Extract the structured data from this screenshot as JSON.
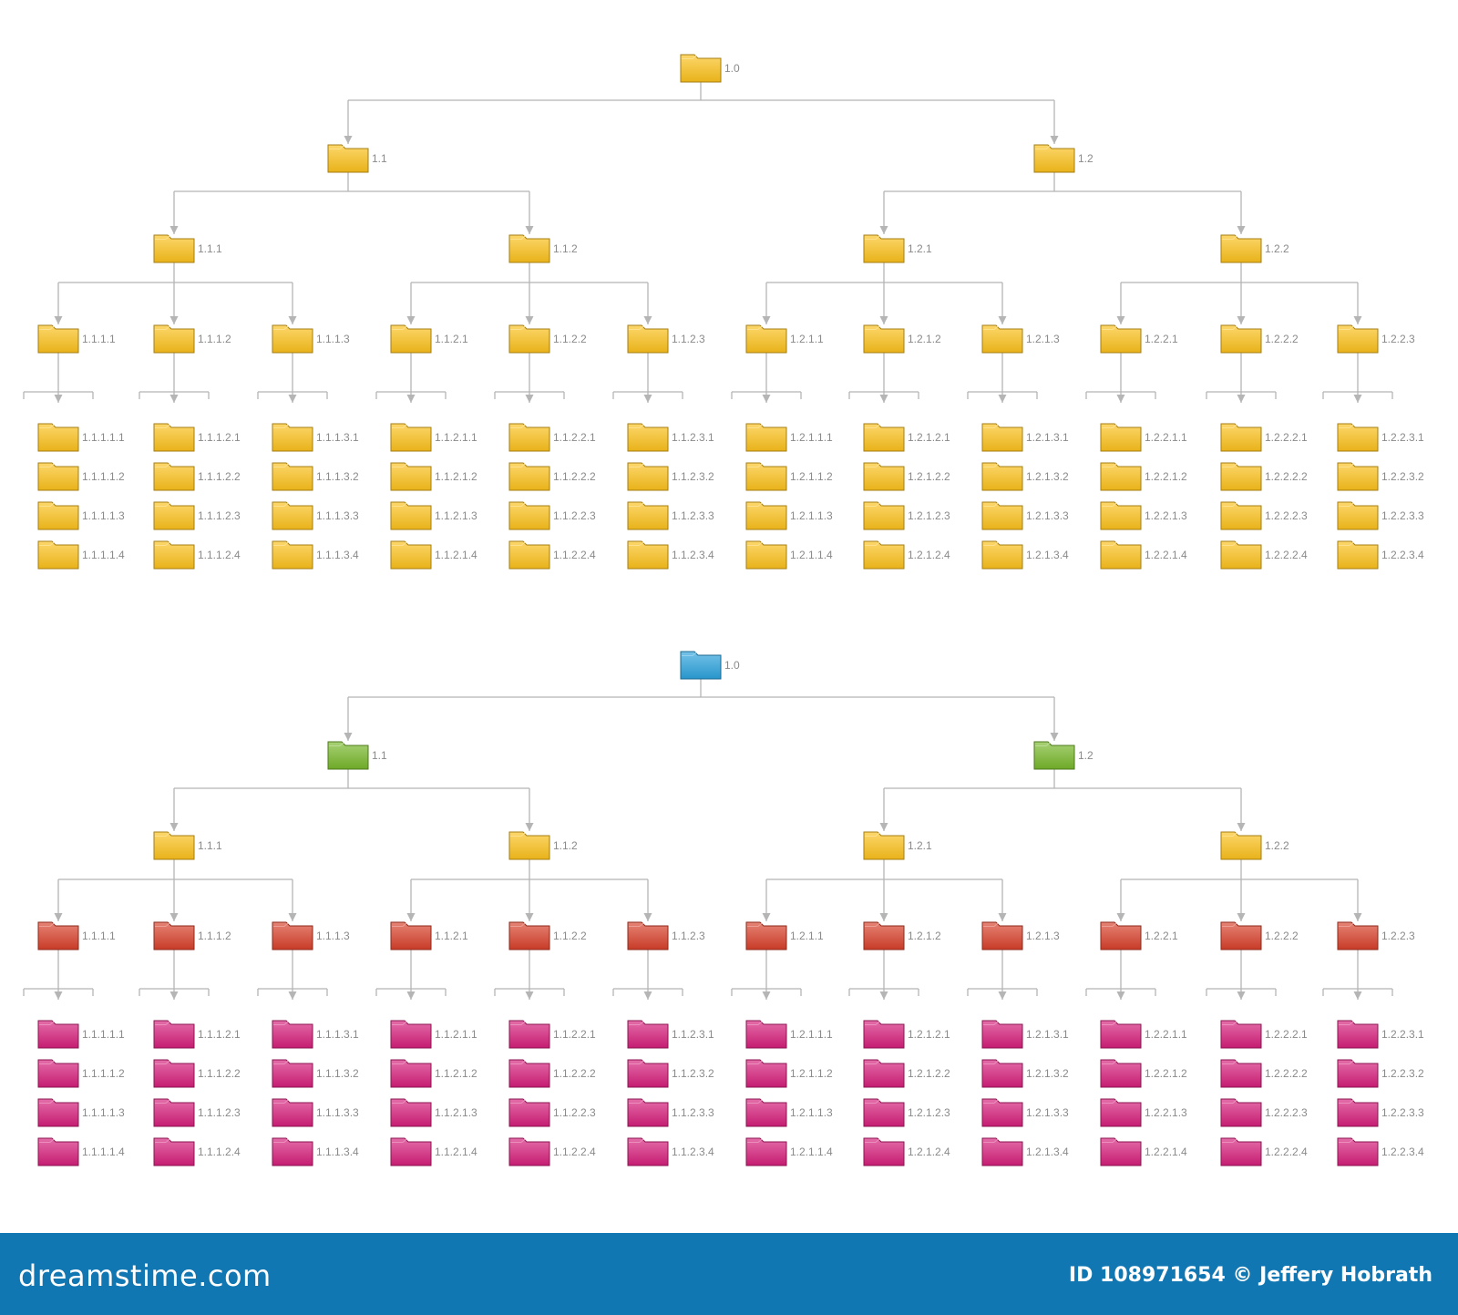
{
  "colors": {
    "folder_yellow": "#fcc21b",
    "folder_blue": "#2ba2dd",
    "folder_green": "#78b82a",
    "folder_red": "#d8402a",
    "folder_magenta": "#d61e7b",
    "connector": "#b5b5b5",
    "label": "#8a8a8a",
    "footer_bg": "#1177b2"
  },
  "diagrams": [
    {
      "name": "diagram-yellow",
      "level_colors": [
        "folder_yellow",
        "folder_yellow",
        "folder_yellow",
        "folder_yellow",
        "folder_yellow"
      ],
      "tree": {
        "label": "1.0",
        "children": [
          {
            "label": "1.1",
            "children": [
              {
                "label": "1.1.1",
                "children": [
                  {
                    "label": "1.1.1.1",
                    "leaves": [
                      "1.1.1.1.1",
                      "1.1.1.1.2",
                      "1.1.1.1.3",
                      "1.1.1.1.4"
                    ]
                  },
                  {
                    "label": "1.1.1.2",
                    "leaves": [
                      "1.1.1.2.1",
                      "1.1.1.2.2",
                      "1.1.1.2.3",
                      "1.1.1.2.4"
                    ]
                  },
                  {
                    "label": "1.1.1.3",
                    "leaves": [
                      "1.1.1.3.1",
                      "1.1.1.3.2",
                      "1.1.1.3.3",
                      "1.1.1.3.4"
                    ]
                  }
                ]
              },
              {
                "label": "1.1.2",
                "children": [
                  {
                    "label": "1.1.2.1",
                    "leaves": [
                      "1.1.2.1.1",
                      "1.1.2.1.2",
                      "1.1.2.1.3",
                      "1.1.2.1.4"
                    ]
                  },
                  {
                    "label": "1.1.2.2",
                    "leaves": [
                      "1.1.2.2.1",
                      "1.1.2.2.2",
                      "1.1.2.2.3",
                      "1.1.2.2.4"
                    ]
                  },
                  {
                    "label": "1.1.2.3",
                    "leaves": [
                      "1.1.2.3.1",
                      "1.1.2.3.2",
                      "1.1.2.3.3",
                      "1.1.2.3.4"
                    ]
                  }
                ]
              }
            ]
          },
          {
            "label": "1.2",
            "children": [
              {
                "label": "1.2.1",
                "children": [
                  {
                    "label": "1.2.1.1",
                    "leaves": [
                      "1.2.1.1.1",
                      "1.2.1.1.2",
                      "1.2.1.1.3",
                      "1.2.1.1.4"
                    ]
                  },
                  {
                    "label": "1.2.1.2",
                    "leaves": [
                      "1.2.1.2.1",
                      "1.2.1.2.2",
                      "1.2.1.2.3",
                      "1.2.1.2.4"
                    ]
                  },
                  {
                    "label": "1.2.1.3",
                    "leaves": [
                      "1.2.1.3.1",
                      "1.2.1.3.2",
                      "1.2.1.3.3",
                      "1.2.1.3.4"
                    ]
                  }
                ]
              },
              {
                "label": "1.2.2",
                "children": [
                  {
                    "label": "1.2.2.1",
                    "leaves": [
                      "1.2.2.1.1",
                      "1.2.2.1.2",
                      "1.2.2.1.3",
                      "1.2.2.1.4"
                    ]
                  },
                  {
                    "label": "1.2.2.2",
                    "leaves": [
                      "1.2.2.2.1",
                      "1.2.2.2.2",
                      "1.2.2.2.3",
                      "1.2.2.2.4"
                    ]
                  },
                  {
                    "label": "1.2.2.3",
                    "leaves": [
                      "1.2.2.3.1",
                      "1.2.2.3.2",
                      "1.2.2.3.3",
                      "1.2.2.3.4"
                    ]
                  }
                ]
              }
            ]
          }
        ]
      }
    },
    {
      "name": "diagram-colored",
      "level_colors": [
        "folder_blue",
        "folder_green",
        "folder_yellow",
        "folder_red",
        "folder_magenta"
      ],
      "tree": {
        "label": "1.0",
        "children": [
          {
            "label": "1.1",
            "children": [
              {
                "label": "1.1.1",
                "children": [
                  {
                    "label": "1.1.1.1",
                    "leaves": [
                      "1.1.1.1.1",
                      "1.1.1.1.2",
                      "1.1.1.1.3",
                      "1.1.1.1.4"
                    ]
                  },
                  {
                    "label": "1.1.1.2",
                    "leaves": [
                      "1.1.1.2.1",
                      "1.1.1.2.2",
                      "1.1.1.2.3",
                      "1.1.1.2.4"
                    ]
                  },
                  {
                    "label": "1.1.1.3",
                    "leaves": [
                      "1.1.1.3.1",
                      "1.1.1.3.2",
                      "1.1.1.3.3",
                      "1.1.1.3.4"
                    ]
                  }
                ]
              },
              {
                "label": "1.1.2",
                "children": [
                  {
                    "label": "1.1.2.1",
                    "leaves": [
                      "1.1.2.1.1",
                      "1.1.2.1.2",
                      "1.1.2.1.3",
                      "1.1.2.1.4"
                    ]
                  },
                  {
                    "label": "1.1.2.2",
                    "leaves": [
                      "1.1.2.2.1",
                      "1.1.2.2.2",
                      "1.1.2.2.3",
                      "1.1.2.2.4"
                    ]
                  },
                  {
                    "label": "1.1.2.3",
                    "leaves": [
                      "1.1.2.3.1",
                      "1.1.2.3.2",
                      "1.1.2.3.3",
                      "1.1.2.3.4"
                    ]
                  }
                ]
              }
            ]
          },
          {
            "label": "1.2",
            "children": [
              {
                "label": "1.2.1",
                "children": [
                  {
                    "label": "1.2.1.1",
                    "leaves": [
                      "1.2.1.1.1",
                      "1.2.1.1.2",
                      "1.2.1.1.3",
                      "1.2.1.1.4"
                    ]
                  },
                  {
                    "label": "1.2.1.2",
                    "leaves": [
                      "1.2.1.2.1",
                      "1.2.1.2.2",
                      "1.2.1.2.3",
                      "1.2.1.2.4"
                    ]
                  },
                  {
                    "label": "1.2.1.3",
                    "leaves": [
                      "1.2.1.3.1",
                      "1.2.1.3.2",
                      "1.2.1.3.3",
                      "1.2.1.3.4"
                    ]
                  }
                ]
              },
              {
                "label": "1.2.2",
                "children": [
                  {
                    "label": "1.2.2.1",
                    "leaves": [
                      "1.2.2.1.1",
                      "1.2.2.1.2",
                      "1.2.2.1.3",
                      "1.2.2.1.4"
                    ]
                  },
                  {
                    "label": "1.2.2.2",
                    "leaves": [
                      "1.2.2.2.1",
                      "1.2.2.2.2",
                      "1.2.2.2.3",
                      "1.2.2.2.4"
                    ]
                  },
                  {
                    "label": "1.2.2.3",
                    "leaves": [
                      "1.2.2.3.1",
                      "1.2.2.3.2",
                      "1.2.2.3.3",
                      "1.2.2.3.4"
                    ]
                  }
                ]
              }
            ]
          }
        ]
      }
    }
  ],
  "footer": {
    "logo": "dreamstime.com",
    "id_text": "ID 108971654",
    "copyright_symbol": "©",
    "author": "Jeffery Hobrath"
  }
}
